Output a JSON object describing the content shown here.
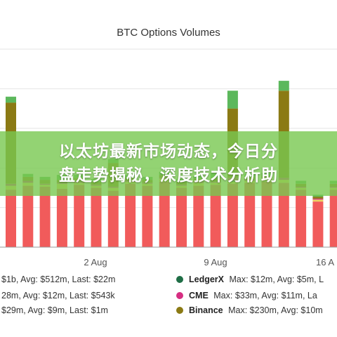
{
  "banner": {
    "line1": "以太坊最新市场动态，今日分",
    "line2": "盘走势揭秘，深度技术分析助"
  },
  "chart_data": {
    "type": "bar",
    "stacked": true,
    "title": "BTC Options Volumes",
    "x_ticks": [
      "2 Aug",
      "9 Aug",
      "16 A"
    ],
    "grid": true,
    "series_colors": {
      "Deribit": "#f15b5b",
      "OKEx": "#ebd060",
      "LedgerX": "#1f6e46",
      "CME": "#d62e82",
      "Binance": "#8b7a14",
      "Bakkt": "#5cb85c"
    },
    "bars": [
      [
        58,
        4,
        0,
        2,
        82,
        6
      ],
      [
        62,
        3,
        0,
        2,
        4,
        3
      ],
      [
        61,
        2,
        0,
        1,
        4,
        3
      ],
      [
        59,
        5,
        0,
        1,
        3,
        5
      ],
      [
        63,
        2,
        0,
        1,
        4,
        3
      ],
      [
        60,
        2,
        0,
        1,
        3,
        3
      ],
      [
        57,
        3,
        0,
        1,
        24,
        4
      ],
      [
        64,
        2,
        0,
        1,
        3,
        3
      ],
      [
        62,
        2,
        0,
        1,
        3,
        3
      ],
      [
        66,
        3,
        0,
        1,
        3,
        3
      ],
      [
        60,
        2,
        0,
        1,
        3,
        3
      ],
      [
        62,
        3,
        0,
        1,
        3,
        3
      ],
      [
        63,
        2,
        0,
        1,
        4,
        5
      ],
      [
        64,
        2,
        1,
        3,
        70,
        18
      ],
      [
        65,
        2,
        0,
        1,
        3,
        3
      ],
      [
        66,
        2,
        0,
        1,
        3,
        3
      ],
      [
        65,
        3,
        0,
        2,
        88,
        10
      ],
      [
        58,
        2,
        0,
        1,
        3,
        3
      ],
      [
        46,
        2,
        0,
        1,
        2,
        2
      ],
      [
        58,
        2,
        0,
        1,
        3,
        3
      ],
      [
        62,
        2,
        0,
        1,
        3,
        3
      ]
    ],
    "legend": [
      {
        "name": "",
        "text": "$1b, Avg: $512m, Last: $22m",
        "color": ""
      },
      {
        "name": "LedgerX",
        "text": "Max: $12m, Avg: $5m, L",
        "color": "#1f6e46"
      },
      {
        "name": "",
        "text": "28m, Avg: $12m, Last: $543k",
        "color": ""
      },
      {
        "name": "CME",
        "text": "Max: $33m, Avg: $11m, La",
        "color": "#d62e82"
      },
      {
        "name": "",
        "text": "$29m, Avg: $9m, Last: $1m",
        "color": ""
      },
      {
        "name": "Binance",
        "text": "Max: $230m, Avg: $10m",
        "color": "#8b7a14"
      }
    ]
  }
}
